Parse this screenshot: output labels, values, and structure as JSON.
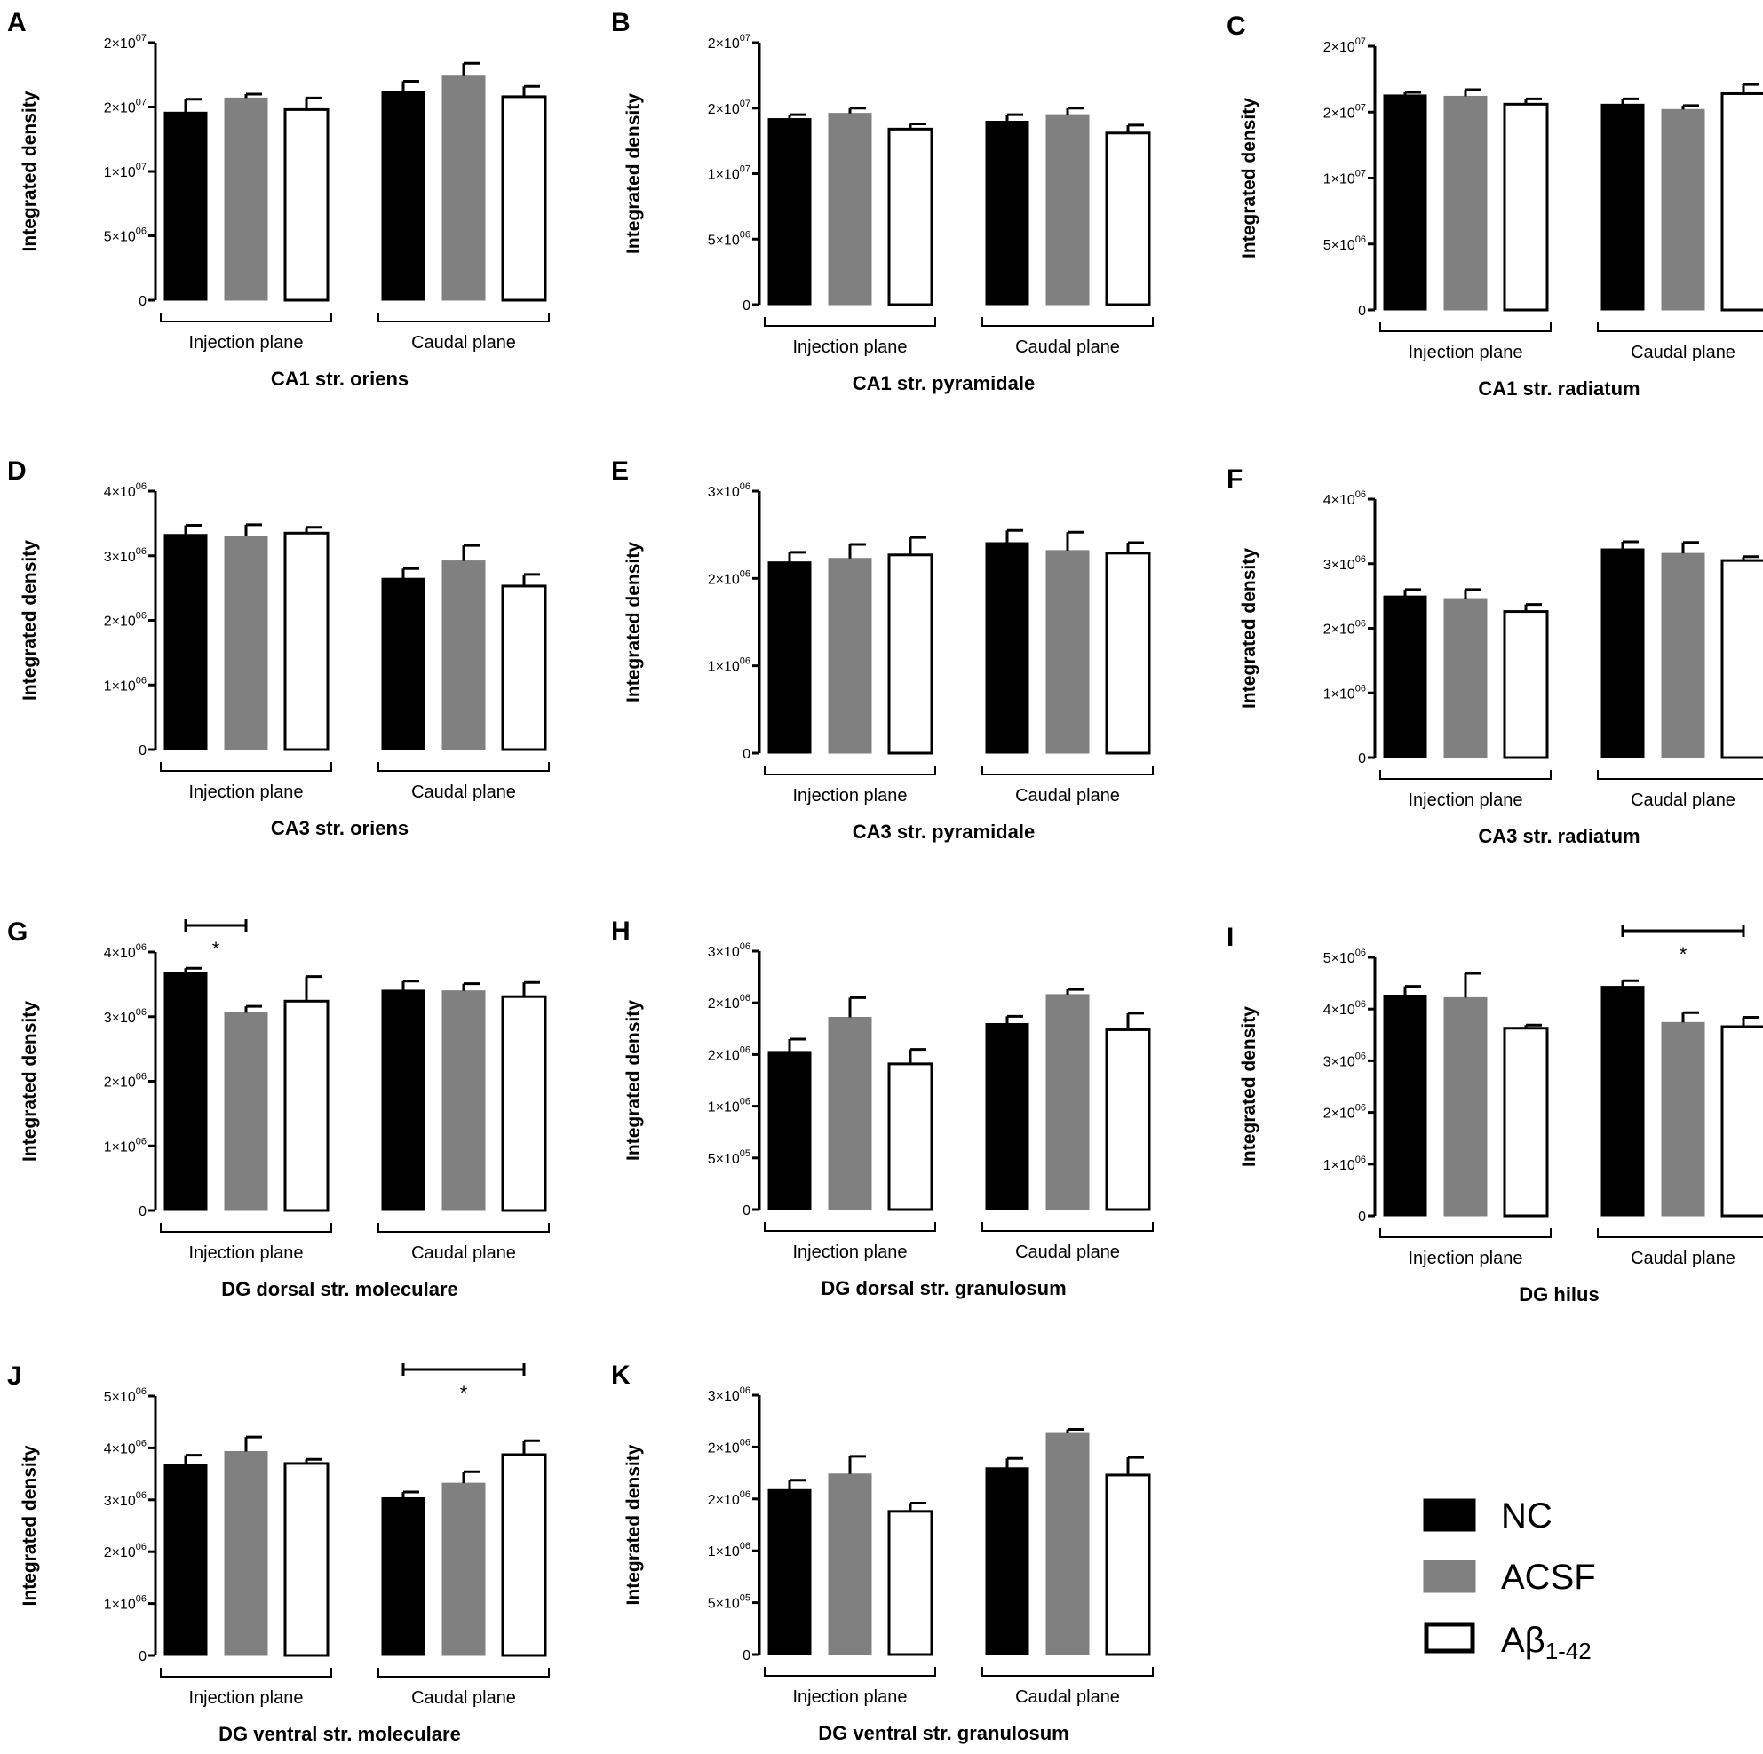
{
  "colors": {
    "NC": "#000000",
    "ACSF": "#808080",
    "Abeta": "#ffffff",
    "axis": "#000000"
  },
  "legend": {
    "items": [
      {
        "key": "NC",
        "label": "NC",
        "sub": ""
      },
      {
        "key": "ACSF",
        "label": "ACSF",
        "sub": ""
      },
      {
        "key": "Abeta",
        "label": "Aβ",
        "sub": "1-42"
      }
    ]
  },
  "chart_data": [
    {
      "panel": "A",
      "type": "bar",
      "title": "CA1 str. oriens",
      "ylabel": "Integrated density",
      "ylim": [
        0,
        20000000
      ],
      "yticks": [
        {
          "label": "0"
        },
        {
          "label": "5×10",
          "exp": "06"
        },
        {
          "label": "1×10",
          "exp": "07"
        },
        {
          "label": "2×10",
          "exp": "07"
        },
        {
          "label": "2×10",
          "exp": "07"
        }
      ],
      "groups": [
        "Injection plane",
        "Caudal plane"
      ],
      "series": [
        {
          "name": "NC",
          "values": [
            14600000,
            16200000
          ],
          "errors": [
            1000000,
            800000
          ]
        },
        {
          "name": "ACSF",
          "values": [
            15700000,
            17400000
          ],
          "errors": [
            300000,
            1000000
          ]
        },
        {
          "name": "Aβ1-42",
          "values": [
            14800000,
            15800000
          ],
          "errors": [
            900000,
            800000
          ]
        }
      ],
      "significance": []
    },
    {
      "panel": "B",
      "type": "bar",
      "title": "CA1 str. pyramidale",
      "ylabel": "Integrated density",
      "ylim": [
        0,
        20000000
      ],
      "yticks": [
        {
          "label": "0"
        },
        {
          "label": "5×10",
          "exp": "06"
        },
        {
          "label": "1×10",
          "exp": "07"
        },
        {
          "label": "2×10",
          "exp": "07"
        },
        {
          "label": "2×10",
          "exp": "07"
        }
      ],
      "groups": [
        "Injection plane",
        "Caudal plane"
      ],
      "series": [
        {
          "name": "NC",
          "values": [
            14200000,
            14000000
          ],
          "errors": [
            300000,
            500000
          ]
        },
        {
          "name": "ACSF",
          "values": [
            14600000,
            14500000
          ],
          "errors": [
            400000,
            500000
          ]
        },
        {
          "name": "Aβ1-42",
          "values": [
            13400000,
            13100000
          ],
          "errors": [
            400000,
            600000
          ]
        }
      ],
      "significance": []
    },
    {
      "panel": "C",
      "type": "bar",
      "title": "CA1 str. radiatum",
      "ylabel": "Integrated density",
      "ylim": [
        0,
        20000000
      ],
      "yticks": [
        {
          "label": "0"
        },
        {
          "label": "5×10",
          "exp": "06"
        },
        {
          "label": "1×10",
          "exp": "07"
        },
        {
          "label": "2×10",
          "exp": "07"
        },
        {
          "label": "2×10",
          "exp": "07"
        }
      ],
      "groups": [
        "Injection plane",
        "Caudal plane"
      ],
      "series": [
        {
          "name": "NC",
          "values": [
            16300000,
            15600000
          ],
          "errors": [
            200000,
            400000
          ]
        },
        {
          "name": "ACSF",
          "values": [
            16200000,
            15200000
          ],
          "errors": [
            500000,
            300000
          ]
        },
        {
          "name": "Aβ1-42",
          "values": [
            15600000,
            16400000
          ],
          "errors": [
            400000,
            700000
          ]
        }
      ],
      "significance": []
    },
    {
      "panel": "D",
      "type": "bar",
      "title": "CA3 str. oriens",
      "ylabel": "Integrated density",
      "ylim": [
        0,
        4000000
      ],
      "yticks": [
        {
          "label": "0"
        },
        {
          "label": "1×10",
          "exp": "06"
        },
        {
          "label": "2×10",
          "exp": "06"
        },
        {
          "label": "3×10",
          "exp": "06"
        },
        {
          "label": "4×10",
          "exp": "06"
        }
      ],
      "groups": [
        "Injection plane",
        "Caudal plane"
      ],
      "series": [
        {
          "name": "NC",
          "values": [
            3330000,
            2650000
          ],
          "errors": [
            140000,
            150000
          ]
        },
        {
          "name": "ACSF",
          "values": [
            3300000,
            2920000
          ],
          "errors": [
            180000,
            240000
          ]
        },
        {
          "name": "Aβ1-42",
          "values": [
            3350000,
            2530000
          ],
          "errors": [
            90000,
            180000
          ]
        }
      ],
      "significance": []
    },
    {
      "panel": "E",
      "type": "bar",
      "title": "CA3 str. pyramidale",
      "ylabel": "Integrated density",
      "ylim": [
        0,
        3000000
      ],
      "yticks": [
        {
          "label": "0"
        },
        {
          "label": "1×10",
          "exp": "06"
        },
        {
          "label": "2×10",
          "exp": "06"
        },
        {
          "label": "3×10",
          "exp": "06"
        }
      ],
      "groups": [
        "Injection plane",
        "Caudal plane"
      ],
      "series": [
        {
          "name": "NC",
          "values": [
            2190000,
            2410000
          ],
          "errors": [
            110000,
            140000
          ]
        },
        {
          "name": "ACSF",
          "values": [
            2230000,
            2320000
          ],
          "errors": [
            160000,
            210000
          ]
        },
        {
          "name": "Aβ1-42",
          "values": [
            2270000,
            2290000
          ],
          "errors": [
            200000,
            120000
          ]
        }
      ],
      "significance": []
    },
    {
      "panel": "F",
      "type": "bar",
      "title": "CA3 str. radiatum",
      "ylabel": "Integrated density",
      "ylim": [
        0,
        4000000
      ],
      "yticks": [
        {
          "label": "0"
        },
        {
          "label": "1×10",
          "exp": "06"
        },
        {
          "label": "2×10",
          "exp": "06"
        },
        {
          "label": "3×10",
          "exp": "06"
        },
        {
          "label": "4×10",
          "exp": "06"
        }
      ],
      "groups": [
        "Injection plane",
        "Caudal plane"
      ],
      "series": [
        {
          "name": "NC",
          "values": [
            2500000,
            3230000
          ],
          "errors": [
            100000,
            110000
          ]
        },
        {
          "name": "ACSF",
          "values": [
            2460000,
            3160000
          ],
          "errors": [
            140000,
            170000
          ]
        },
        {
          "name": "Aβ1-42",
          "values": [
            2260000,
            3050000
          ],
          "errors": [
            110000,
            60000
          ]
        }
      ],
      "significance": []
    },
    {
      "panel": "G",
      "type": "bar",
      "title": "DG dorsal str. moleculare",
      "ylabel": "Integrated density",
      "ylim": [
        0,
        4000000
      ],
      "yticks": [
        {
          "label": "0"
        },
        {
          "label": "1×10",
          "exp": "06"
        },
        {
          "label": "2×10",
          "exp": "06"
        },
        {
          "label": "3×10",
          "exp": "06"
        },
        {
          "label": "4×10",
          "exp": "06"
        }
      ],
      "groups": [
        "Injection plane",
        "Caudal plane"
      ],
      "series": [
        {
          "name": "NC",
          "values": [
            3690000,
            3410000
          ],
          "errors": [
            60000,
            140000
          ]
        },
        {
          "name": "ACSF",
          "values": [
            3060000,
            3400000
          ],
          "errors": [
            100000,
            110000
          ]
        },
        {
          "name": "Aβ1-42",
          "values": [
            3240000,
            3310000
          ],
          "errors": [
            380000,
            220000
          ]
        }
      ],
      "significance": [
        {
          "group": 0,
          "from": 0,
          "to": 1,
          "label": "*"
        }
      ]
    },
    {
      "panel": "H",
      "type": "bar",
      "title": "DG dorsal str. granulosum",
      "ylabel": "Integrated density",
      "ylim": [
        0,
        2500000
      ],
      "yticks": [
        {
          "label": "0"
        },
        {
          "label": "5×10",
          "exp": "05"
        },
        {
          "label": "1×10",
          "exp": "06"
        },
        {
          "label": "2×10",
          "exp": "06"
        },
        {
          "label": "2×10",
          "exp": "06"
        },
        {
          "label": "3×10",
          "exp": "06"
        }
      ],
      "groups": [
        "Injection plane",
        "Caudal plane"
      ],
      "series": [
        {
          "name": "NC",
          "values": [
            1530000,
            1800000
          ],
          "errors": [
            120000,
            70000
          ]
        },
        {
          "name": "ACSF",
          "values": [
            1860000,
            2080000
          ],
          "errors": [
            190000,
            50000
          ]
        },
        {
          "name": "Aβ1-42",
          "values": [
            1410000,
            1740000
          ],
          "errors": [
            140000,
            160000
          ]
        }
      ],
      "significance": []
    },
    {
      "panel": "I",
      "type": "bar",
      "title": "DG hilus",
      "ylabel": "Integrated density",
      "ylim": [
        0,
        5000000
      ],
      "yticks": [
        {
          "label": "0"
        },
        {
          "label": "1×10",
          "exp": "06"
        },
        {
          "label": "2×10",
          "exp": "06"
        },
        {
          "label": "3×10",
          "exp": "06"
        },
        {
          "label": "4×10",
          "exp": "06"
        },
        {
          "label": "5×10",
          "exp": "06"
        }
      ],
      "groups": [
        "Injection plane",
        "Caudal plane"
      ],
      "series": [
        {
          "name": "NC",
          "values": [
            4270000,
            4440000
          ],
          "errors": [
            170000,
            110000
          ]
        },
        {
          "name": "ACSF",
          "values": [
            4220000,
            3740000
          ],
          "errors": [
            470000,
            190000
          ]
        },
        {
          "name": "Aβ1-42",
          "values": [
            3630000,
            3660000
          ],
          "errors": [
            60000,
            180000
          ]
        }
      ],
      "significance": [
        {
          "group": 1,
          "from": 0,
          "to": 2,
          "label": "*"
        }
      ]
    },
    {
      "panel": "J",
      "type": "bar",
      "title": "DG ventral str. moleculare",
      "ylabel": "Integrated density",
      "ylim": [
        0,
        5000000
      ],
      "yticks": [
        {
          "label": "0"
        },
        {
          "label": "1×10",
          "exp": "06"
        },
        {
          "label": "2×10",
          "exp": "06"
        },
        {
          "label": "3×10",
          "exp": "06"
        },
        {
          "label": "4×10",
          "exp": "06"
        },
        {
          "label": "5×10",
          "exp": "06"
        }
      ],
      "groups": [
        "Injection plane",
        "Caudal plane"
      ],
      "series": [
        {
          "name": "NC",
          "values": [
            3690000,
            3040000
          ],
          "errors": [
            170000,
            110000
          ]
        },
        {
          "name": "ACSF",
          "values": [
            3930000,
            3320000
          ],
          "errors": [
            280000,
            220000
          ]
        },
        {
          "name": "Aβ1-42",
          "values": [
            3700000,
            3870000
          ],
          "errors": [
            80000,
            270000
          ]
        }
      ],
      "significance": [
        {
          "group": 1,
          "from": 0,
          "to": 2,
          "label": "*"
        }
      ]
    },
    {
      "panel": "K",
      "type": "bar",
      "title": "DG ventral str. granulosum",
      "ylabel": "Integrated density",
      "ylim": [
        0,
        2500000
      ],
      "yticks": [
        {
          "label": "0"
        },
        {
          "label": "5×10",
          "exp": "05"
        },
        {
          "label": "1×10",
          "exp": "06"
        },
        {
          "label": "2×10",
          "exp": "06"
        },
        {
          "label": "2×10",
          "exp": "06"
        },
        {
          "label": "3×10",
          "exp": "06"
        }
      ],
      "groups": [
        "Injection plane",
        "Caudal plane"
      ],
      "series": [
        {
          "name": "NC",
          "values": [
            1590000,
            1800000
          ],
          "errors": [
            90000,
            90000
          ]
        },
        {
          "name": "ACSF",
          "values": [
            1740000,
            2140000
          ],
          "errors": [
            170000,
            30000
          ]
        },
        {
          "name": "Aβ1-42",
          "values": [
            1380000,
            1730000
          ],
          "errors": [
            80000,
            170000
          ]
        }
      ],
      "significance": []
    }
  ]
}
